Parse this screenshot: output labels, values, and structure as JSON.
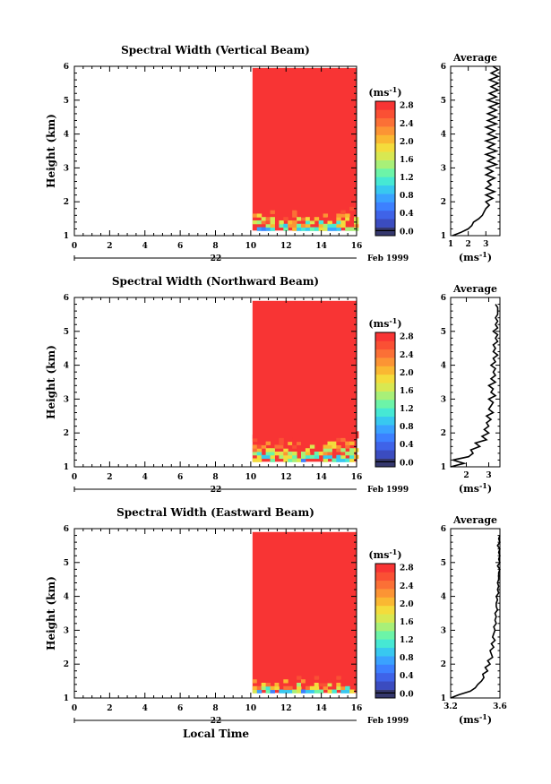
{
  "chart_data": [
    {
      "type": "heatmap",
      "title": "Spectral Width (Vertical Beam)",
      "xlabel": "",
      "ylabel": "Height (km)",
      "xlim": [
        0,
        16
      ],
      "ylim": [
        1,
        6
      ],
      "xticks": [
        "0",
        "2",
        "4",
        "6",
        "8",
        "10",
        "12",
        "14",
        "16"
      ],
      "yticks": [
        "1",
        "2",
        "3",
        "4",
        "5",
        "6"
      ],
      "date_day": "22",
      "date_label": "Feb 1999",
      "data_time_range": [
        10.1,
        16.0
      ],
      "data_height_range": [
        1.15,
        5.95
      ],
      "lowlayer_top": 1.85,
      "fill_value": 2.8,
      "colorbar": {
        "unit": "(ms",
        "unit_sup": "-1",
        "unit_close": ")",
        "ticks": [
          "2.8",
          "2.4",
          "2.0",
          "1.6",
          "1.2",
          "0.8",
          "0.4",
          "0.0"
        ],
        "range": [
          0.0,
          2.8
        ]
      },
      "profile": {
        "title": "Average",
        "xlabel": "(ms",
        "xlabel_sup": "-1",
        "xlabel_close": ")",
        "xlim": [
          1,
          3.8
        ],
        "xticks": [
          1,
          2,
          3
        ],
        "xticklabels": [
          "1",
          "2",
          "3"
        ],
        "ylim": [
          1,
          6
        ],
        "yticks": [
          "1",
          "2",
          "3",
          "4",
          "5",
          "6"
        ],
        "heights": [
          1.0,
          1.1,
          1.2,
          1.3,
          1.4,
          1.5,
          1.6,
          1.7,
          1.8,
          1.9,
          2.0,
          2.1,
          2.2,
          2.3,
          2.4,
          2.5,
          2.6,
          2.7,
          2.8,
          2.9,
          3.0,
          3.1,
          3.2,
          3.3,
          3.4,
          3.5,
          3.6,
          3.7,
          3.8,
          3.9,
          4.0,
          4.1,
          4.2,
          4.3,
          4.4,
          4.5,
          4.6,
          4.7,
          4.8,
          4.9,
          5.0,
          5.1,
          5.2,
          5.3,
          5.4,
          5.5,
          5.6,
          5.7,
          5.8,
          5.9,
          6.0
        ],
        "values": [
          1.1,
          1.6,
          2.0,
          2.2,
          2.3,
          2.6,
          2.8,
          2.9,
          3.0,
          3.2,
          3.0,
          3.4,
          3.0,
          3.5,
          3.0,
          3.3,
          3.1,
          3.5,
          3.0,
          3.4,
          3.0,
          3.6,
          3.1,
          3.5,
          3.0,
          3.6,
          3.1,
          3.5,
          3.0,
          3.6,
          3.1,
          3.5,
          3.0,
          3.6,
          3.1,
          3.6,
          3.1,
          3.6,
          3.2,
          3.7,
          3.1,
          3.6,
          3.2,
          3.7,
          3.3,
          3.7,
          3.2,
          3.7,
          3.3,
          3.7,
          3.4
        ]
      }
    },
    {
      "type": "heatmap",
      "title": "Spectral Width (Northward Beam)",
      "xlabel": "",
      "ylabel": "Height (km)",
      "xlim": [
        0,
        16
      ],
      "ylim": [
        1,
        6
      ],
      "xticks": [
        "0",
        "2",
        "4",
        "6",
        "8",
        "10",
        "12",
        "14",
        "16"
      ],
      "yticks": [
        "1",
        "2",
        "3",
        "4",
        "5",
        "6"
      ],
      "date_day": "22",
      "date_label": "Feb 1999",
      "data_time_range": [
        10.1,
        16.0
      ],
      "data_height_range": [
        1.15,
        5.9
      ],
      "lowlayer_top": 2.0,
      "fill_value": 2.8,
      "colorbar": {
        "unit": "(ms",
        "unit_sup": "-1",
        "unit_close": ")",
        "ticks": [
          "2.8",
          "2.4",
          "2.0",
          "1.6",
          "1.2",
          "0.8",
          "0.4",
          "0.0"
        ],
        "range": [
          0.0,
          2.8
        ]
      },
      "profile": {
        "title": "Average",
        "xlabel": "(ms",
        "xlabel_sup": "-1",
        "xlabel_close": ")",
        "xlim": [
          1.3,
          3.5
        ],
        "xticks": [
          2,
          3
        ],
        "xticklabels": [
          "2",
          "3"
        ],
        "ylim": [
          1,
          6
        ],
        "yticks": [
          "1",
          "2",
          "3",
          "4",
          "5",
          "6"
        ],
        "heights": [
          1.0,
          1.1,
          1.2,
          1.3,
          1.4,
          1.5,
          1.6,
          1.7,
          1.8,
          1.9,
          2.0,
          2.1,
          2.2,
          2.3,
          2.4,
          2.5,
          2.6,
          2.7,
          2.8,
          2.9,
          3.0,
          3.1,
          3.2,
          3.3,
          3.4,
          3.5,
          3.6,
          3.7,
          3.8,
          3.9,
          4.0,
          4.1,
          4.2,
          4.3,
          4.4,
          4.5,
          4.6,
          4.7,
          4.8,
          4.9,
          5.0,
          5.1,
          5.2,
          5.3,
          5.4,
          5.5,
          5.6,
          5.7,
          5.8
        ],
        "values": [
          1.3,
          1.9,
          1.4,
          2.1,
          2.3,
          2.2,
          2.6,
          2.4,
          2.9,
          2.7,
          3.0,
          2.8,
          3.0,
          2.9,
          3.1,
          2.9,
          3.2,
          3.0,
          3.1,
          3.2,
          3.0,
          3.3,
          3.1,
          3.2,
          3.0,
          3.3,
          3.1,
          3.3,
          3.2,
          3.3,
          3.1,
          3.3,
          3.2,
          3.4,
          3.2,
          3.3,
          3.2,
          3.4,
          3.3,
          3.4,
          3.2,
          3.4,
          3.3,
          3.4,
          3.3,
          3.4,
          3.4,
          3.4,
          3.3
        ]
      }
    },
    {
      "type": "heatmap",
      "title": "Spectral Width (Eastward Beam)",
      "xlabel": "Local Time",
      "ylabel": "Height (km)",
      "xlim": [
        0,
        16
      ],
      "ylim": [
        1,
        6
      ],
      "xticks": [
        "0",
        "2",
        "4",
        "6",
        "8",
        "10",
        "12",
        "14",
        "16"
      ],
      "yticks": [
        "1",
        "2",
        "3",
        "4",
        "5",
        "6"
      ],
      "date_day": "22",
      "date_label": "Feb 1999",
      "data_time_range": [
        10.1,
        16.0
      ],
      "data_height_range": [
        1.15,
        5.9
      ],
      "lowlayer_top": 1.6,
      "fill_value": 2.8,
      "colorbar": {
        "unit": "(ms",
        "unit_sup": "-1",
        "unit_close": ")",
        "ticks": [
          "2.8",
          "2.4",
          "2.0",
          "1.6",
          "1.2",
          "0.8",
          "0.4",
          "0.0"
        ],
        "range": [
          0.0,
          2.8
        ]
      },
      "profile": {
        "title": "Average",
        "xlabel": "(ms",
        "xlabel_sup": "-1",
        "xlabel_close": ")",
        "xlim": [
          3.2,
          3.6
        ],
        "xticks": [
          3.2,
          3.6
        ],
        "xticklabels": [
          "3.2",
          "3.6"
        ],
        "ylim": [
          1,
          6
        ],
        "yticks": [
          "1",
          "2",
          "3",
          "4",
          "5",
          "6"
        ],
        "heights": [
          1.0,
          1.1,
          1.2,
          1.3,
          1.4,
          1.5,
          1.6,
          1.7,
          1.8,
          1.9,
          2.0,
          2.1,
          2.2,
          2.3,
          2.4,
          2.5,
          2.6,
          2.7,
          2.8,
          2.9,
          3.0,
          3.1,
          3.2,
          3.3,
          3.4,
          3.5,
          3.6,
          3.7,
          3.8,
          3.9,
          4.0,
          4.1,
          4.2,
          4.3,
          4.4,
          4.5,
          4.6,
          4.7,
          4.8,
          4.9,
          5.0,
          5.1,
          5.2,
          5.3,
          5.4,
          5.5,
          5.6,
          5.7,
          5.8
        ],
        "values": [
          3.2,
          3.27,
          3.36,
          3.4,
          3.42,
          3.45,
          3.47,
          3.46,
          3.5,
          3.48,
          3.52,
          3.5,
          3.54,
          3.53,
          3.52,
          3.55,
          3.53,
          3.56,
          3.54,
          3.55,
          3.56,
          3.55,
          3.57,
          3.56,
          3.57,
          3.56,
          3.58,
          3.57,
          3.57,
          3.58,
          3.57,
          3.59,
          3.58,
          3.59,
          3.58,
          3.59,
          3.59,
          3.59,
          3.6,
          3.58,
          3.6,
          3.59,
          3.6,
          3.59,
          3.6,
          3.58,
          3.6,
          3.59,
          3.6
        ]
      }
    }
  ]
}
